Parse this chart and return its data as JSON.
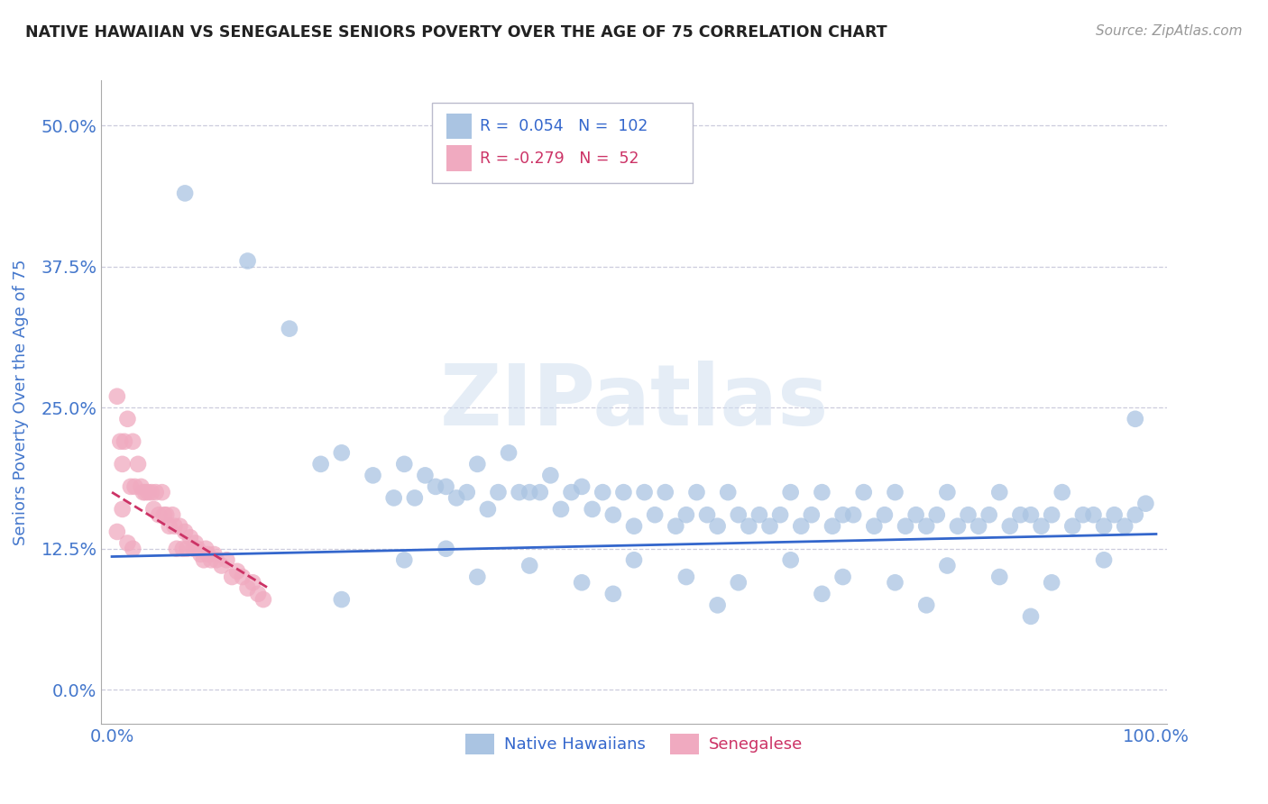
{
  "title": "NATIVE HAWAIIAN VS SENEGALESE SENIORS POVERTY OVER THE AGE OF 75 CORRELATION CHART",
  "source": "Source: ZipAtlas.com",
  "ylabel": "Seniors Poverty Over the Age of 75",
  "xlim": [
    -0.01,
    1.01
  ],
  "ylim": [
    -0.03,
    0.54
  ],
  "yticks": [
    0.0,
    0.125,
    0.25,
    0.375,
    0.5
  ],
  "ytick_labels": [
    "0.0%",
    "12.5%",
    "25.0%",
    "37.5%",
    "50.0%"
  ],
  "xticks": [
    0.0,
    1.0
  ],
  "xtick_labels": [
    "0.0%",
    "100.0%"
  ],
  "blue_color": "#aac4e2",
  "pink_color": "#f0aac0",
  "blue_line_color": "#3366cc",
  "pink_line_color": "#cc3366",
  "title_color": "#222222",
  "source_color": "#999999",
  "axis_label_color": "#4477cc",
  "tick_label_color": "#4477cc",
  "grid_color": "#ccccdd",
  "background_color": "#ffffff",
  "watermark": "ZIPatlas",
  "blue_trend": [
    0.0,
    1.0,
    0.118,
    0.138
  ],
  "pink_trend_x": [
    0.0,
    0.15
  ],
  "pink_trend_y": [
    0.175,
    0.09
  ],
  "native_hawaiians_x": [
    0.07,
    0.13,
    0.17,
    0.2,
    0.22,
    0.25,
    0.27,
    0.28,
    0.29,
    0.3,
    0.31,
    0.32,
    0.33,
    0.34,
    0.35,
    0.36,
    0.37,
    0.38,
    0.39,
    0.4,
    0.41,
    0.42,
    0.43,
    0.44,
    0.45,
    0.46,
    0.47,
    0.48,
    0.49,
    0.5,
    0.51,
    0.52,
    0.53,
    0.54,
    0.55,
    0.56,
    0.57,
    0.58,
    0.59,
    0.6,
    0.61,
    0.62,
    0.63,
    0.64,
    0.65,
    0.66,
    0.67,
    0.68,
    0.69,
    0.7,
    0.71,
    0.72,
    0.73,
    0.74,
    0.75,
    0.76,
    0.77,
    0.78,
    0.79,
    0.8,
    0.81,
    0.82,
    0.83,
    0.84,
    0.85,
    0.86,
    0.87,
    0.88,
    0.89,
    0.9,
    0.91,
    0.92,
    0.93,
    0.94,
    0.95,
    0.96,
    0.97,
    0.98,
    0.99,
    0.32,
    0.28,
    0.35,
    0.4,
    0.45,
    0.5,
    0.55,
    0.6,
    0.65,
    0.7,
    0.75,
    0.8,
    0.85,
    0.9,
    0.95,
    0.22,
    0.48,
    0.58,
    0.68,
    0.78,
    0.88,
    0.98
  ],
  "native_hawaiians_y": [
    0.44,
    0.38,
    0.32,
    0.2,
    0.21,
    0.19,
    0.17,
    0.2,
    0.17,
    0.19,
    0.18,
    0.18,
    0.17,
    0.175,
    0.2,
    0.16,
    0.175,
    0.21,
    0.175,
    0.175,
    0.175,
    0.19,
    0.16,
    0.175,
    0.18,
    0.16,
    0.175,
    0.155,
    0.175,
    0.145,
    0.175,
    0.155,
    0.175,
    0.145,
    0.155,
    0.175,
    0.155,
    0.145,
    0.175,
    0.155,
    0.145,
    0.155,
    0.145,
    0.155,
    0.175,
    0.145,
    0.155,
    0.175,
    0.145,
    0.155,
    0.155,
    0.175,
    0.145,
    0.155,
    0.175,
    0.145,
    0.155,
    0.145,
    0.155,
    0.175,
    0.145,
    0.155,
    0.145,
    0.155,
    0.175,
    0.145,
    0.155,
    0.155,
    0.145,
    0.155,
    0.175,
    0.145,
    0.155,
    0.155,
    0.145,
    0.155,
    0.145,
    0.155,
    0.165,
    0.125,
    0.115,
    0.1,
    0.11,
    0.095,
    0.115,
    0.1,
    0.095,
    0.115,
    0.1,
    0.095,
    0.11,
    0.1,
    0.095,
    0.115,
    0.08,
    0.085,
    0.075,
    0.085,
    0.075,
    0.065,
    0.24
  ],
  "senegalese_x": [
    0.005,
    0.008,
    0.01,
    0.012,
    0.015,
    0.018,
    0.02,
    0.022,
    0.025,
    0.028,
    0.03,
    0.032,
    0.035,
    0.038,
    0.04,
    0.042,
    0.045,
    0.048,
    0.05,
    0.052,
    0.055,
    0.058,
    0.06,
    0.062,
    0.065,
    0.068,
    0.07,
    0.072,
    0.075,
    0.078,
    0.08,
    0.082,
    0.085,
    0.088,
    0.09,
    0.092,
    0.095,
    0.098,
    0.1,
    0.105,
    0.11,
    0.115,
    0.12,
    0.125,
    0.13,
    0.135,
    0.14,
    0.145,
    0.005,
    0.01,
    0.015,
    0.02
  ],
  "senegalese_y": [
    0.26,
    0.22,
    0.2,
    0.22,
    0.24,
    0.18,
    0.22,
    0.18,
    0.2,
    0.18,
    0.175,
    0.175,
    0.175,
    0.175,
    0.16,
    0.175,
    0.155,
    0.175,
    0.155,
    0.155,
    0.145,
    0.155,
    0.145,
    0.125,
    0.145,
    0.125,
    0.14,
    0.125,
    0.135,
    0.125,
    0.13,
    0.125,
    0.12,
    0.115,
    0.125,
    0.12,
    0.115,
    0.12,
    0.115,
    0.11,
    0.115,
    0.1,
    0.105,
    0.1,
    0.09,
    0.095,
    0.085,
    0.08,
    0.14,
    0.16,
    0.13,
    0.125
  ]
}
